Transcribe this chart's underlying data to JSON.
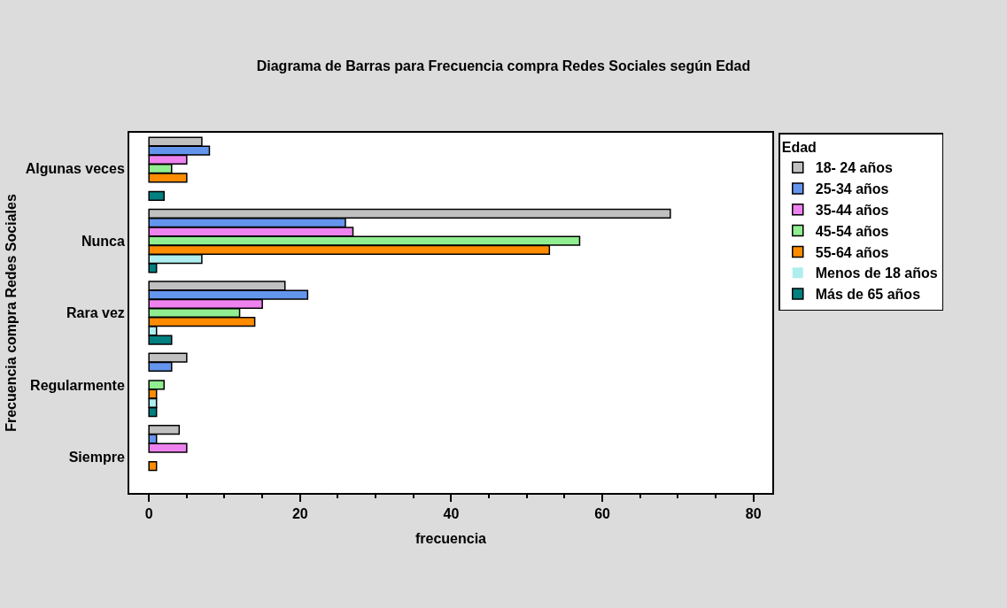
{
  "chart_data": {
    "type": "bar",
    "orientation": "horizontal",
    "title": "Diagrama de Barras para Frecuencia compra Redes Sociales según Edad",
    "xlabel": "frecuencia",
    "ylabel": "Frecuencia compra Redes Sociales",
    "legend_title": "Edad",
    "legend": "right",
    "grid": false,
    "categories": [
      "Algunas veces",
      "Nunca",
      "Rara vez",
      "Regularmente",
      "Siempre"
    ],
    "xlim": [
      -2.6,
      82.5
    ],
    "xticks": [
      0,
      {
        "value": 5,
        "label": null
      },
      {
        "value": 10,
        "label": null
      },
      {
        "value": 15,
        "label": null
      },
      20,
      {
        "value": 25,
        "label": null
      },
      {
        "value": 30,
        "label": null
      },
      {
        "value": 35,
        "label": null
      },
      40,
      {
        "value": 45,
        "label": null
      },
      {
        "value": 50,
        "label": null
      },
      {
        "value": 55,
        "label": null
      },
      60,
      {
        "value": 65,
        "label": null
      },
      {
        "value": 70,
        "label": null
      },
      {
        "value": 75,
        "label": null
      },
      80
    ],
    "series": [
      {
        "name": "18- 24 años",
        "color": "#c0c0c0",
        "values": [
          7,
          69,
          18,
          5,
          4
        ]
      },
      {
        "name": "25-34 años",
        "color": "#6495ed",
        "values": [
          8,
          26,
          21,
          3,
          1
        ]
      },
      {
        "name": "35-44 años",
        "color": "#ee82ee",
        "values": [
          5,
          27,
          15,
          0,
          5
        ]
      },
      {
        "name": "45-54 años",
        "color": "#90ee90",
        "values": [
          3,
          57,
          12,
          2,
          0
        ]
      },
      {
        "name": "55-64 años",
        "color": "#ff8c00",
        "values": [
          5,
          53,
          14,
          1,
          1
        ]
      },
      {
        "name": "Menos de 18 años",
        "color": "#afeeee",
        "values": [
          0,
          7,
          1,
          1,
          0
        ]
      },
      {
        "name": "Más de 65 años",
        "color": "#008080",
        "values": [
          2,
          1,
          3,
          1,
          0
        ]
      }
    ]
  }
}
